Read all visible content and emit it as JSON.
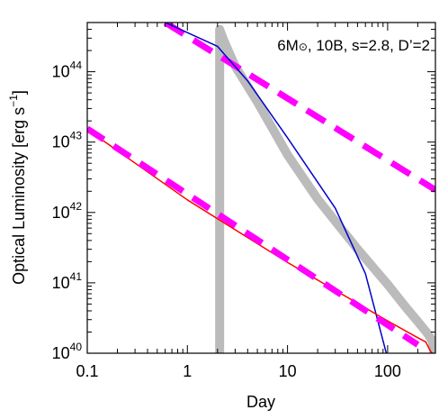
{
  "chart_data": {
    "type": "line",
    "title": "",
    "annotation": {
      "base": "6M",
      "symbol": "⊙",
      "rest": ", 10B, s=2.8, D’=2"
    },
    "xlabel": "Day",
    "ylabel": {
      "base": "Optical Luminosity [erg s",
      "sup": "−1",
      "close": "]"
    },
    "xscale": "log",
    "yscale": "log",
    "xlim": [
      0.1,
      300
    ],
    "ylim": [
      1e+40,
      5e+44
    ],
    "xticks": [
      {
        "value": 0.1,
        "label": "0.1"
      },
      {
        "value": 1,
        "label": "1"
      },
      {
        "value": 10,
        "label": "10"
      },
      {
        "value": 100,
        "label": "100"
      }
    ],
    "yticks": [
      {
        "value": 1e+40,
        "base": "10",
        "exp": "40"
      },
      {
        "value": 1e+41,
        "base": "10",
        "exp": "41"
      },
      {
        "value": 1e+42,
        "base": "10",
        "exp": "42"
      },
      {
        "value": 1e+43,
        "base": "10",
        "exp": "43"
      },
      {
        "value": 1e+44,
        "base": "10",
        "exp": "44"
      }
    ],
    "grid": false,
    "series": [
      {
        "color": "#bbbbbb",
        "width": 10,
        "dash": "",
        "points": [
          [
            2.1,
            1e+40
          ],
          [
            2.1,
            3.99e+44
          ],
          [
            2.3,
            2.82e+44
          ],
          [
            3,
            1.2e+44
          ],
          [
            5,
            3.72e+43
          ],
          [
            10,
            6.6e+42
          ],
          [
            20,
            1.55e+42
          ],
          [
            50,
            3.02e+41
          ],
          [
            100,
            9.5e+40
          ],
          [
            150,
            4.6e+40
          ],
          [
            200,
            2.82e+40
          ],
          [
            250,
            1.91e+40
          ],
          [
            280,
            1.48e+40
          ],
          [
            290,
            1e+40
          ]
        ]
      },
      {
        "color": "#ff00ff",
        "width": 7,
        "dash": "24,13",
        "points": [
          [
            0.6,
            5e+44
          ],
          [
            300,
            2.09e+42
          ]
        ]
      },
      {
        "color": "#0000cc",
        "width": 1.5,
        "dash": "",
        "points": [
          [
            0.6,
            5e+44
          ],
          [
            2,
            2.29e+44
          ],
          [
            4,
            7.4e+43
          ],
          [
            10,
            1.15e+43
          ],
          [
            30,
            1.15e+42
          ],
          [
            60,
            1.35e+41
          ],
          [
            97,
            1e+40
          ]
        ]
      },
      {
        "color": "#ff0000",
        "width": 1.5,
        "dash": "",
        "points": [
          [
            0.1,
            1.51e+43
          ],
          [
            1,
            1.51e+42
          ],
          [
            10,
            1.95e+41
          ],
          [
            100,
            2.88e+40
          ],
          [
            200,
            1.66e+40
          ],
          [
            240,
            1.45e+40
          ],
          [
            270,
            1.05e+40
          ],
          [
            280,
            1e+40
          ]
        ]
      },
      {
        "color": "#ff00ff",
        "width": 7,
        "dash": "22,13",
        "points": [
          [
            0.1,
            1.55e+43
          ],
          [
            200,
            1.32e+40
          ]
        ]
      }
    ]
  }
}
